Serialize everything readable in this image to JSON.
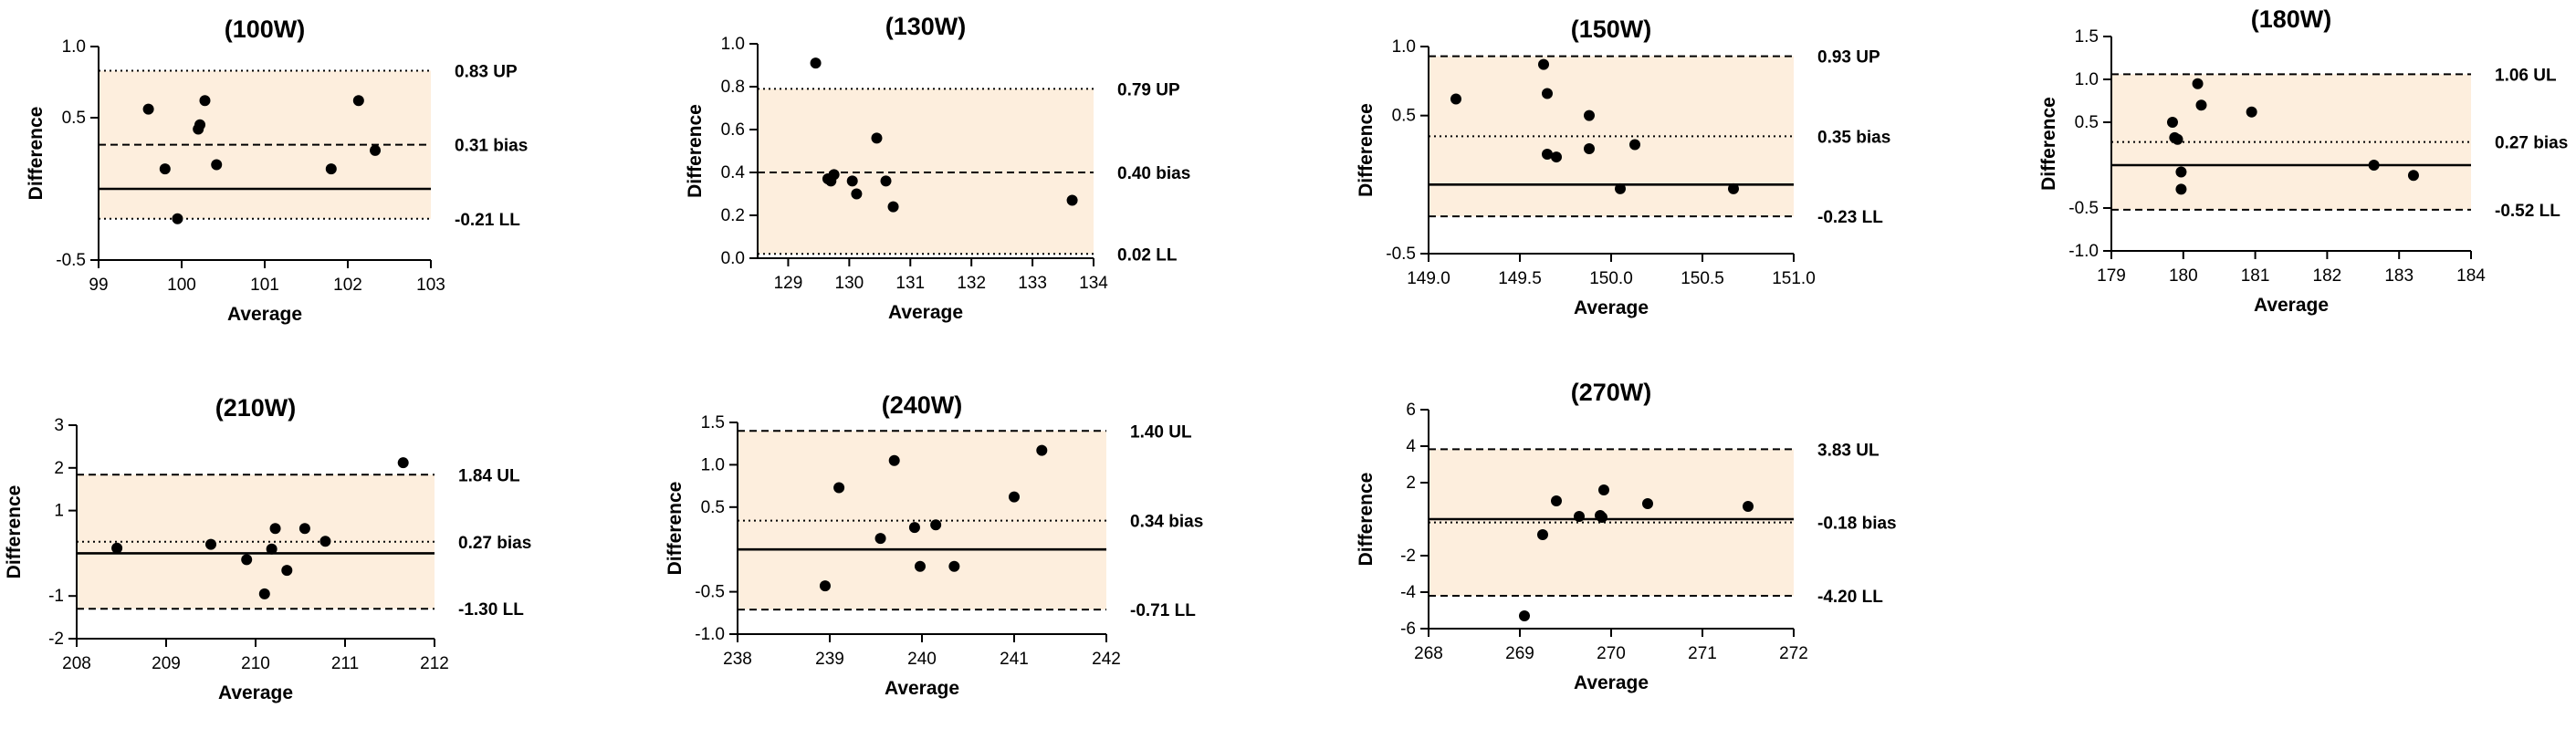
{
  "figure": {
    "panels": [
      {
        "title": "(100W)",
        "xlabel": "Average",
        "ylabel": "Difference"
      },
      {
        "title": "(130W)",
        "xlabel": "Average",
        "ylabel": "Difference"
      },
      {
        "title": "(150W)",
        "xlabel": "Average",
        "ylabel": "Difference"
      },
      {
        "title": "(180W)",
        "xlabel": "Average",
        "ylabel": "Difference"
      },
      {
        "title": "(210W)",
        "xlabel": "Average",
        "ylabel": "Difference"
      },
      {
        "title": "(240W)",
        "xlabel": "Average",
        "ylabel": "Difference"
      },
      {
        "title": "(270W)",
        "xlabel": "Average",
        "ylabel": "Difference"
      }
    ]
  },
  "chart_data": [
    {
      "type": "scatter",
      "title": "(100W)",
      "xlabel": "Average",
      "ylabel": "Difference",
      "xlim": [
        99,
        103
      ],
      "ylim": [
        -0.5,
        1.0
      ],
      "xticks": [
        "99",
        "100",
        "101",
        "102",
        "103"
      ],
      "yticks": [
        "-0.5",
        "0.5",
        "1.0"
      ],
      "shaded_band": [
        -0.21,
        0.83
      ],
      "zero_line": 0,
      "reference_lines": [
        {
          "label": "0.83 UP",
          "value": 0.83,
          "style": "dotted"
        },
        {
          "label": "0.31 bias",
          "value": 0.31,
          "style": "dashed"
        },
        {
          "label": "-0.21 LL",
          "value": -0.21,
          "style": "dotted"
        }
      ],
      "points": [
        {
          "x": 99.6,
          "y": 0.56
        },
        {
          "x": 99.8,
          "y": 0.14
        },
        {
          "x": 99.95,
          "y": -0.21
        },
        {
          "x": 100.2,
          "y": 0.42
        },
        {
          "x": 100.22,
          "y": 0.45
        },
        {
          "x": 100.28,
          "y": 0.62
        },
        {
          "x": 100.42,
          "y": 0.17
        },
        {
          "x": 101.8,
          "y": 0.14
        },
        {
          "x": 102.13,
          "y": 0.62
        },
        {
          "x": 102.33,
          "y": 0.27
        }
      ]
    },
    {
      "type": "scatter",
      "title": "(130W)",
      "xlabel": "Average",
      "ylabel": "Difference",
      "xlim": [
        128.5,
        134
      ],
      "ylim": [
        0.0,
        1.0
      ],
      "xticks": [
        "129",
        "130",
        "131",
        "132",
        "133",
        "134"
      ],
      "yticks": [
        "0.0",
        "0.2",
        "0.4",
        "0.6",
        "0.8",
        "1.0"
      ],
      "shaded_band": [
        0.02,
        0.79
      ],
      "zero_line": null,
      "reference_lines": [
        {
          "label": "0.79 UP",
          "value": 0.79,
          "style": "dotted"
        },
        {
          "label": "0.40 bias",
          "value": 0.4,
          "style": "dashed"
        },
        {
          "label": "0.02 LL",
          "value": 0.02,
          "style": "dotted"
        }
      ],
      "points": [
        {
          "x": 129.45,
          "y": 0.91
        },
        {
          "x": 129.65,
          "y": 0.37
        },
        {
          "x": 129.7,
          "y": 0.36
        },
        {
          "x": 129.75,
          "y": 0.39
        },
        {
          "x": 130.05,
          "y": 0.36
        },
        {
          "x": 130.12,
          "y": 0.3
        },
        {
          "x": 130.45,
          "y": 0.56
        },
        {
          "x": 130.6,
          "y": 0.36
        },
        {
          "x": 130.72,
          "y": 0.24
        },
        {
          "x": 133.65,
          "y": 0.27
        }
      ]
    },
    {
      "type": "scatter",
      "title": "(150W)",
      "xlabel": "Average",
      "ylabel": "Difference",
      "xlim": [
        149,
        151
      ],
      "ylim": [
        -0.5,
        1.0
      ],
      "xticks": [
        "149.0",
        "149.5",
        "150.0",
        "150.5",
        "151.0"
      ],
      "yticks": [
        "-0.5",
        "0.5",
        "1.0"
      ],
      "shaded_band": [
        -0.23,
        0.93
      ],
      "zero_line": 0,
      "reference_lines": [
        {
          "label": "0.93 UP",
          "value": 0.93,
          "style": "dashed"
        },
        {
          "label": "0.35 bias",
          "value": 0.35,
          "style": "dotted"
        },
        {
          "label": "-0.23 LL",
          "value": -0.23,
          "style": "dashed"
        }
      ],
      "points": [
        {
          "x": 149.15,
          "y": 0.62
        },
        {
          "x": 149.63,
          "y": 0.87
        },
        {
          "x": 149.65,
          "y": 0.66
        },
        {
          "x": 149.65,
          "y": 0.22
        },
        {
          "x": 149.7,
          "y": 0.2
        },
        {
          "x": 149.88,
          "y": 0.5
        },
        {
          "x": 149.88,
          "y": 0.26
        },
        {
          "x": 150.05,
          "y": -0.03
        },
        {
          "x": 150.13,
          "y": 0.29
        },
        {
          "x": 150.67,
          "y": -0.03
        }
      ]
    },
    {
      "type": "scatter",
      "title": "(180W)",
      "xlabel": "Average",
      "ylabel": "Difference",
      "xlim": [
        179,
        184
      ],
      "ylim": [
        -1.0,
        1.5
      ],
      "xticks": [
        "179",
        "180",
        "181",
        "182",
        "183",
        "184"
      ],
      "yticks": [
        "-1.0",
        "-0.5",
        "0.5",
        "1.0",
        "1.5"
      ],
      "shaded_band": [
        -0.52,
        1.06
      ],
      "zero_line": 0,
      "reference_lines": [
        {
          "label": "1.06 UL",
          "value": 1.06,
          "style": "dashed"
        },
        {
          "label": "0.27 bias",
          "value": 0.27,
          "style": "dotted"
        },
        {
          "label": "-0.52 LL",
          "value": -0.52,
          "style": "dashed"
        }
      ],
      "points": [
        {
          "x": 179.85,
          "y": 0.5
        },
        {
          "x": 179.88,
          "y": 0.32
        },
        {
          "x": 179.92,
          "y": 0.3
        },
        {
          "x": 179.97,
          "y": -0.08
        },
        {
          "x": 179.97,
          "y": -0.28
        },
        {
          "x": 180.2,
          "y": 0.95
        },
        {
          "x": 180.25,
          "y": 0.7
        },
        {
          "x": 180.95,
          "y": 0.62
        },
        {
          "x": 182.65,
          "y": 0.0
        },
        {
          "x": 183.2,
          "y": -0.12
        }
      ]
    },
    {
      "type": "scatter",
      "title": "(210W)",
      "xlabel": "Average",
      "ylabel": "Difference",
      "xlim": [
        208,
        212
      ],
      "ylim": [
        -2,
        3
      ],
      "xticks": [
        "208",
        "209",
        "210",
        "211",
        "212"
      ],
      "yticks": [
        "-2",
        "-1",
        "1",
        "2",
        "3"
      ],
      "shaded_band": [
        -1.3,
        1.84
      ],
      "zero_line": 0,
      "reference_lines": [
        {
          "label": "1.84 UL",
          "value": 1.84,
          "style": "dashed"
        },
        {
          "label": "0.27 bias",
          "value": 0.27,
          "style": "dotted"
        },
        {
          "label": "-1.30 LL",
          "value": -1.3,
          "style": "dashed"
        }
      ],
      "points": [
        {
          "x": 208.45,
          "y": 0.12
        },
        {
          "x": 209.5,
          "y": 0.21
        },
        {
          "x": 209.9,
          "y": -0.15
        },
        {
          "x": 210.1,
          "y": -0.95
        },
        {
          "x": 210.18,
          "y": 0.1
        },
        {
          "x": 210.22,
          "y": 0.58
        },
        {
          "x": 210.35,
          "y": -0.4
        },
        {
          "x": 210.55,
          "y": 0.58
        },
        {
          "x": 210.78,
          "y": 0.28
        },
        {
          "x": 211.65,
          "y": 2.12
        }
      ]
    },
    {
      "type": "scatter",
      "title": "(240W)",
      "xlabel": "Average",
      "ylabel": "Difference",
      "xlim": [
        238,
        242
      ],
      "ylim": [
        -1.0,
        1.5
      ],
      "xticks": [
        "238",
        "239",
        "240",
        "241",
        "242"
      ],
      "yticks": [
        "-1.0",
        "-0.5",
        "0.5",
        "1.0",
        "1.5"
      ],
      "shaded_band": [
        -0.71,
        1.4
      ],
      "zero_line": 0,
      "reference_lines": [
        {
          "label": "1.40 UL",
          "value": 1.4,
          "style": "dashed"
        },
        {
          "label": "0.34 bias",
          "value": 0.34,
          "style": "dotted"
        },
        {
          "label": "-0.71 LL",
          "value": -0.71,
          "style": "dashed"
        }
      ],
      "points": [
        {
          "x": 238.95,
          "y": -0.43
        },
        {
          "x": 239.1,
          "y": 0.73
        },
        {
          "x": 239.55,
          "y": 0.13
        },
        {
          "x": 239.7,
          "y": 1.05
        },
        {
          "x": 239.92,
          "y": 0.26
        },
        {
          "x": 239.98,
          "y": -0.2
        },
        {
          "x": 240.15,
          "y": 0.29
        },
        {
          "x": 240.35,
          "y": -0.2
        },
        {
          "x": 241.0,
          "y": 0.62
        },
        {
          "x": 241.3,
          "y": 1.17
        }
      ]
    },
    {
      "type": "scatter",
      "title": "(270W)",
      "xlabel": "Average",
      "ylabel": "Difference",
      "xlim": [
        268,
        272
      ],
      "ylim": [
        -6,
        6
      ],
      "xticks": [
        "268",
        "269",
        "270",
        "271",
        "272"
      ],
      "yticks": [
        "-6",
        "-4",
        "-2",
        "2",
        "4",
        "6"
      ],
      "shaded_band": [
        -4.2,
        3.83
      ],
      "zero_line": 0,
      "reference_lines": [
        {
          "label": "3.83 UL",
          "value": 3.83,
          "style": "dashed"
        },
        {
          "label": "-0.18 bias",
          "value": -0.18,
          "style": "dotted"
        },
        {
          "label": "-4.20 LL",
          "value": -4.2,
          "style": "dashed"
        }
      ],
      "points": [
        {
          "x": 269.05,
          "y": -5.3
        },
        {
          "x": 269.25,
          "y": -0.85
        },
        {
          "x": 269.4,
          "y": 1.0
        },
        {
          "x": 269.65,
          "y": 0.15
        },
        {
          "x": 269.88,
          "y": 0.2
        },
        {
          "x": 269.9,
          "y": 0.1
        },
        {
          "x": 269.92,
          "y": 1.6
        },
        {
          "x": 270.4,
          "y": 0.85
        },
        {
          "x": 271.5,
          "y": 0.7
        }
      ]
    }
  ]
}
